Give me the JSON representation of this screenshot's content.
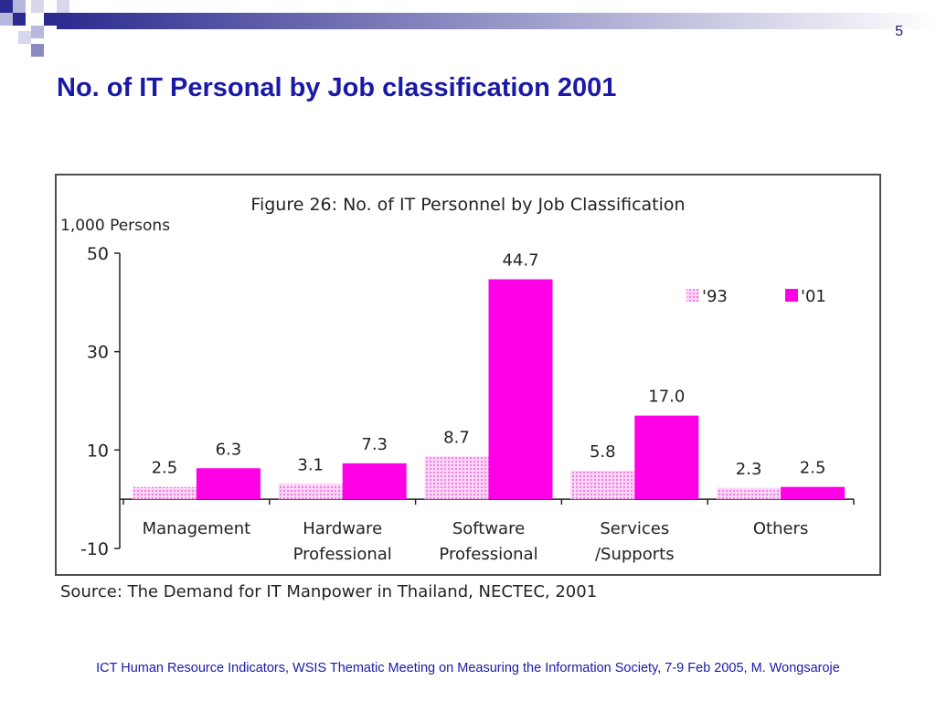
{
  "slide": {
    "number": "5",
    "title": "No. of IT Personal by Job classification 2001",
    "footer": "ICT Human Resource Indicators, WSIS Thematic Meeting on Measuring the Information Society, 7-9 Feb 2005, M. Wongsaroje",
    "accent_color": "#1a1aa6",
    "decoration_color": "#2b2b8f"
  },
  "chart_data": {
    "type": "bar",
    "title": "Figure 26: No. of IT Personnel by Job Classification",
    "ylabel": "1,000 Persons",
    "xlabel": "",
    "ylim": [
      -10,
      50
    ],
    "yticks": [
      50,
      30,
      10,
      -10
    ],
    "grid": false,
    "legend_position": "top-right",
    "categories": [
      [
        "Management"
      ],
      [
        "Hardware",
        "Professional"
      ],
      [
        "Software",
        "Professional"
      ],
      [
        "Services",
        "/Supports"
      ],
      [
        "Others"
      ]
    ],
    "series": [
      {
        "name": "'93",
        "values": [
          2.5,
          3.1,
          8.7,
          5.8,
          2.3
        ],
        "labels": [
          "2.5",
          "3.1",
          "8.7",
          "5.8",
          "2.3"
        ],
        "color": "#f9b8f0",
        "pattern": "dotted"
      },
      {
        "name": "'01",
        "values": [
          6.3,
          7.3,
          44.7,
          17.0,
          2.5
        ],
        "labels": [
          "6.3",
          "7.3",
          "44.7",
          "17.0",
          "2.5"
        ],
        "color": "#ff00e6",
        "pattern": "solid"
      }
    ],
    "source": "Source: The Demand for IT Manpower in Thailand, NECTEC, 2001"
  }
}
